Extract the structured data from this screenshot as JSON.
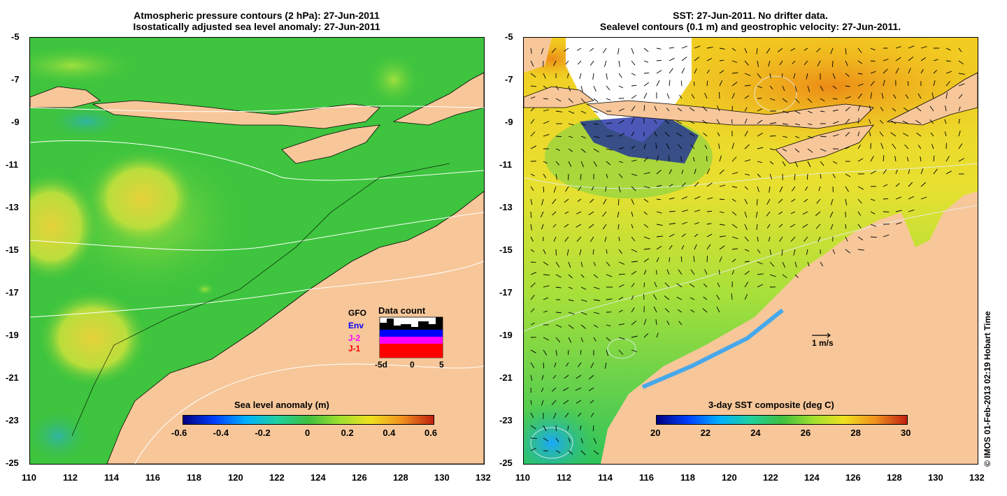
{
  "left": {
    "title_line1": "Atmospheric pressure contours (2 hPa): 27-Jun-2011",
    "title_line2": "Isostatically adjusted sea level anomaly: 27-Jun-2011",
    "colorbar_label": "Sea level anomaly (m)",
    "colorbar_ticks": [
      "-0.6",
      "-0.4",
      "-0.2",
      "0",
      "0.2",
      "0.4",
      "0.6"
    ],
    "legend": {
      "title": "Data count",
      "items": [
        {
          "label": "GFO",
          "color": "#000000"
        },
        {
          "label": "Env",
          "color": "#0000ff"
        },
        {
          "label": "J-2",
          "color": "#ff00ff"
        },
        {
          "label": "J-1",
          "color": "#ff0000"
        }
      ],
      "axis_ticks": [
        "-5d",
        "0",
        "5"
      ]
    }
  },
  "right": {
    "title_line1": "SST: 27-Jun-2011. No drifter data.",
    "title_line2": "Sealevel contours (0.1 m) and geostrophic velocity: 27-Jun-2011.",
    "colorbar_label": "3-day SST composite (deg C)",
    "colorbar_ticks": [
      "20",
      "22",
      "24",
      "26",
      "28",
      "30"
    ],
    "scale_label": "1 m/s"
  },
  "axes": {
    "y_ticks": [
      "-5",
      "-7",
      "-9",
      "-11",
      "-13",
      "-15",
      "-17",
      "-19",
      "-21",
      "-23",
      "-25"
    ],
    "x_ticks": [
      "110",
      "112",
      "114",
      "116",
      "118",
      "120",
      "122",
      "124",
      "126",
      "128",
      "130",
      "132"
    ]
  },
  "copyright": "© IMOS 01-Feb-2013 02:19 Hobart Time",
  "colors": {
    "land": "#f7c79a",
    "ocean_green": "#3ec43e",
    "ocean_yellow": "#d8e63a",
    "sst_orange": "#f59a1a"
  }
}
